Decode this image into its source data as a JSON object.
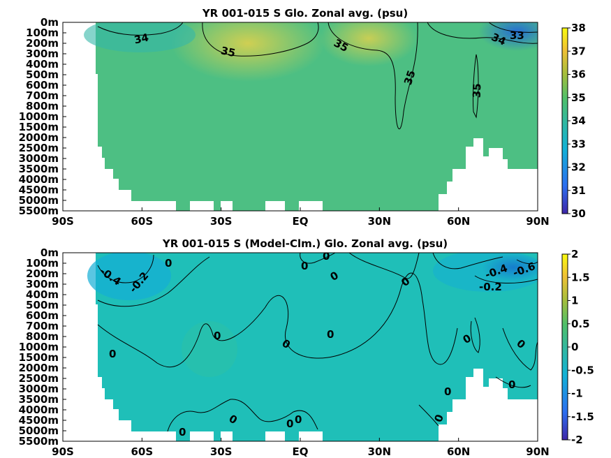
{
  "chart_data": [
    {
      "type": "heatmap",
      "title": "YR 001-015 S Glo. Zonal avg. (psu)",
      "x_ticks": [
        "90S",
        "60S",
        "30S",
        "EQ",
        "30N",
        "60N",
        "90N"
      ],
      "y_ticks": [
        "0m",
        "100m",
        "200m",
        "300m",
        "400m",
        "500m",
        "600m",
        "700m",
        "800m",
        "1000m",
        "1500m",
        "2000m",
        "2500m",
        "3000m",
        "3500m",
        "4000m",
        "4500m",
        "5000m",
        "5500m"
      ],
      "colorbar_ticks": [
        "38",
        "37",
        "36",
        "35",
        "34",
        "33",
        "32",
        "31",
        "30"
      ],
      "colorbar_range": [
        30,
        38
      ],
      "contour_labels": [
        "34",
        "35",
        "35",
        "35",
        "35",
        "34",
        "33"
      ]
    },
    {
      "type": "heatmap",
      "title": "YR 001-015 S (Model-Clm.) Glo. Zonal avg. (psu)",
      "x_ticks": [
        "90S",
        "60S",
        "30S",
        "EQ",
        "30N",
        "60N",
        "90N"
      ],
      "y_ticks": [
        "0m",
        "100m",
        "200m",
        "300m",
        "400m",
        "500m",
        "600m",
        "700m",
        "800m",
        "1000m",
        "1500m",
        "2000m",
        "2500m",
        "3000m",
        "3500m",
        "4000m",
        "4500m",
        "5000m",
        "5500m"
      ],
      "colorbar_ticks": [
        "2",
        "1.5",
        "1",
        "0.5",
        "0",
        "-0.5",
        "-1",
        "-1.5",
        "-2"
      ],
      "colorbar_range": [
        -2,
        2
      ],
      "contour_labels": [
        "-0.4",
        "-0.2",
        "0",
        "0",
        "0",
        "0",
        "0",
        "0",
        "0",
        "0",
        "0",
        "0",
        "0",
        "0",
        "0",
        "0",
        "0",
        "-0.4",
        "-0.6",
        "-0.2"
      ]
    }
  ]
}
